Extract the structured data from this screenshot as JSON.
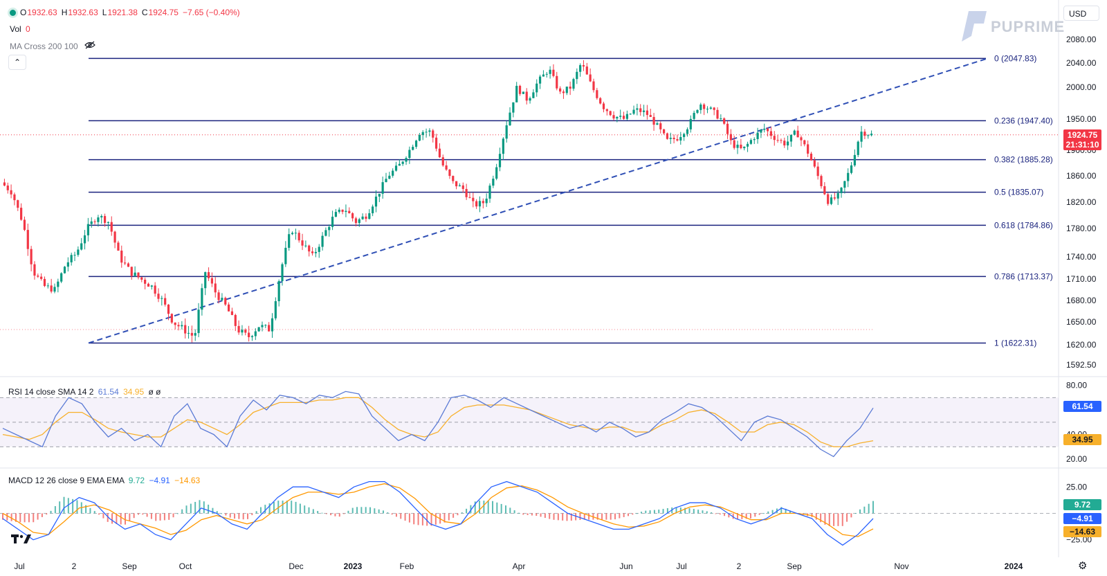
{
  "toolbar": {
    "ohlc_open_label": "O",
    "ohlc_open": "1932.63",
    "ohlc_high_label": "H",
    "ohlc_high": "1932.63",
    "ohlc_low_label": "L",
    "ohlc_low": "1921.38",
    "ohlc_close_label": "C",
    "ohlc_close": "1924.75",
    "ohlc_change": "−7.65 (−0.40%)",
    "vol_label": "Vol",
    "vol_value": "0",
    "ma_label": "MA Cross 200 100",
    "currency": "USD",
    "logo_text": "PUPRIME"
  },
  "colors": {
    "up": "#089981",
    "down": "#f23645",
    "fib": "#1a237e",
    "trend": "#2f4fb5",
    "rsi": "#5b7bd5",
    "rsi_sma": "#f7b02b",
    "macd": "#2962ff",
    "signal": "#ff9800"
  },
  "price_badge": {
    "price": "1924.75",
    "countdown": "21:31:10"
  },
  "chart_data": [
    {
      "type": "candlestick",
      "title": "",
      "y_ticks": [
        "2080.00",
        "2040.00",
        "2000.00",
        "1950.00",
        "1900.00",
        "1860.00",
        "1820.00",
        "1780.00",
        "1740.00",
        "1710.00",
        "1680.00",
        "1650.00",
        "1620.00",
        "1592.50"
      ],
      "ylim": [
        1580,
        2090
      ],
      "x_tick_labels": [
        "Jul",
        "2",
        "Sep",
        "Oct",
        "Dec",
        "2023",
        "Feb",
        "Apr",
        "Jun",
        "Jul",
        "2",
        "Sep",
        "Nov",
        "2024"
      ],
      "fib_levels": [
        {
          "label": "0 (2047.83)",
          "value": 2047.83
        },
        {
          "label": "0.236 (1947.40)",
          "value": 1947.4
        },
        {
          "label": "0.382 (1885.28)",
          "value": 1885.28
        },
        {
          "label": "0.5 (1835.07)",
          "value": 1835.07
        },
        {
          "label": "0.618 (1784.86)",
          "value": 1784.86
        },
        {
          "label": "0.786 (1713.37)",
          "value": 1713.37
        },
        {
          "label": "1 (1622.31)",
          "value": 1622.31
        }
      ],
      "last_price": 1924.75,
      "price_path": [
        1850,
        1835,
        1790,
        1720,
        1700,
        1695,
        1730,
        1745,
        1780,
        1800,
        1790,
        1740,
        1720,
        1710,
        1700,
        1680,
        1650,
        1640,
        1630,
        1720,
        1690,
        1670,
        1640,
        1630,
        1645,
        1640,
        1720,
        1780,
        1760,
        1740,
        1770,
        1800,
        1810,
        1790,
        1800,
        1830,
        1860,
        1875,
        1900,
        1930,
        1930,
        1880,
        1850,
        1840,
        1815,
        1820,
        1870,
        1940,
        2000,
        1980,
        2010,
        2030,
        1990,
        2000,
        2040,
        2000,
        1970,
        1955,
        1950,
        1965,
        1960,
        1940,
        1915,
        1920,
        1940,
        1975,
        1965,
        1950,
        1910,
        1900,
        1920,
        1935,
        1920,
        1910,
        1930,
        1900,
        1860,
        1820,
        1830,
        1870,
        1930,
        1925
      ],
      "rsi": {
        "label": "RSI 14 close SMA 14 2",
        "value": "61.54",
        "sma": "34.95",
        "extra": "ø ø",
        "y_ticks": [
          "80.00",
          "40.00",
          "20.00"
        ],
        "ylim": [
          15,
          82
        ],
        "path": [
          45,
          40,
          35,
          30,
          55,
          70,
          65,
          50,
          38,
          45,
          35,
          40,
          30,
          55,
          65,
          45,
          40,
          30,
          55,
          68,
          60,
          72,
          70,
          65,
          72,
          70,
          75,
          73,
          55,
          45,
          35,
          40,
          35,
          50,
          70,
          72,
          68,
          62,
          70,
          65,
          60,
          55,
          50,
          45,
          48,
          42,
          50,
          45,
          38,
          42,
          52,
          58,
          65,
          62,
          55,
          45,
          35,
          50,
          55,
          52,
          45,
          38,
          28,
          22,
          35,
          45,
          61.54
        ],
        "sma_path": [
          40,
          38,
          36,
          40,
          50,
          58,
          58,
          52,
          45,
          42,
          40,
          38,
          38,
          45,
          52,
          50,
          45,
          40,
          48,
          58,
          62,
          66,
          66,
          66,
          68,
          68,
          70,
          70,
          62,
          52,
          44,
          40,
          38,
          42,
          55,
          62,
          64,
          64,
          64,
          62,
          60,
          56,
          52,
          48,
          46,
          44,
          46,
          46,
          42,
          42,
          48,
          52,
          58,
          60,
          57,
          50,
          42,
          42,
          48,
          50,
          48,
          42,
          34,
          30,
          30,
          33,
          34.95
        ]
      },
      "macd": {
        "label": "MACD 12 26 close 9 EMA EMA",
        "hist": "9.72",
        "macd": "-4.91",
        "signal": "-14.63",
        "display_macd": "−4.91",
        "display_signal": "−14.63",
        "y_ticks": [
          "25.00",
          "-25.00"
        ],
        "ylim": [
          -35,
          35
        ],
        "macd_path": [
          -5,
          -15,
          -25,
          -20,
          5,
          15,
          10,
          -5,
          -15,
          -10,
          -20,
          -25,
          -10,
          5,
          0,
          -10,
          -15,
          0,
          15,
          25,
          25,
          20,
          15,
          25,
          30,
          30,
          20,
          5,
          -10,
          -15,
          -10,
          10,
          25,
          30,
          25,
          20,
          10,
          0,
          -5,
          -10,
          -15,
          -15,
          -10,
          -5,
          5,
          10,
          10,
          5,
          -5,
          -10,
          -5,
          5,
          0,
          -5,
          -20,
          -30,
          -20,
          -4.91
        ],
        "signal_path": [
          0,
          -8,
          -18,
          -20,
          -8,
          5,
          8,
          3,
          -6,
          -10,
          -14,
          -20,
          -16,
          -6,
          -2,
          -6,
          -10,
          -6,
          5,
          15,
          20,
          20,
          18,
          20,
          25,
          28,
          24,
          14,
          0,
          -8,
          -10,
          0,
          15,
          24,
          26,
          22,
          15,
          6,
          0,
          -5,
          -10,
          -13,
          -12,
          -8,
          0,
          6,
          8,
          6,
          0,
          -6,
          -6,
          0,
          0,
          -2,
          -10,
          -20,
          -22,
          -14.63
        ]
      }
    }
  ]
}
